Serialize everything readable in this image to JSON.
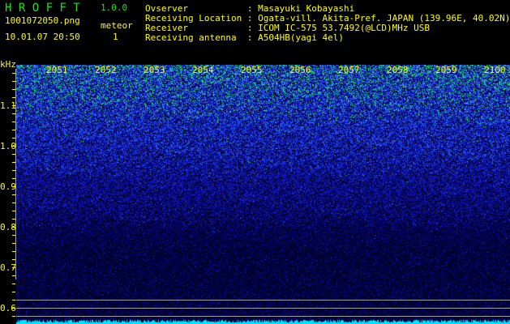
{
  "app": {
    "title": "H R O F F T",
    "version": "1.0.0"
  },
  "file": {
    "filename": "1001072050.png",
    "datetime": "10.01.07 20:50"
  },
  "meteor": {
    "label": "meteor",
    "count": "1"
  },
  "info": [
    {
      "label": "Ovserver",
      "value": "Masayuki Kobayashi"
    },
    {
      "label": "Receiving Location",
      "value": "Ogata-vill. Akita-Pref. JAPAN (139.96E, 40.02N)"
    },
    {
      "label": "Receiver",
      "value": "ICOM IC-575 53.7492(@LCD)MHz USB"
    },
    {
      "label": "Receiving antenna",
      "value": "A504HB(yagi 4el)"
    }
  ],
  "axis": {
    "unit": "kHz",
    "y_labels": [
      "1.1",
      "1.0",
      "0.9",
      "0.8",
      "0.7",
      "0.6"
    ],
    "time_labels": [
      "2051",
      "2052",
      "2053",
      "2054",
      "2055",
      "2056",
      "2057",
      "2058",
      "2059",
      "2100"
    ]
  },
  "colors": {
    "text": "#ffff00",
    "title": "#22dd22",
    "noise_high": "#00ff66",
    "noise_mid": "#2040ff",
    "baseline": "#00e0ff"
  }
}
